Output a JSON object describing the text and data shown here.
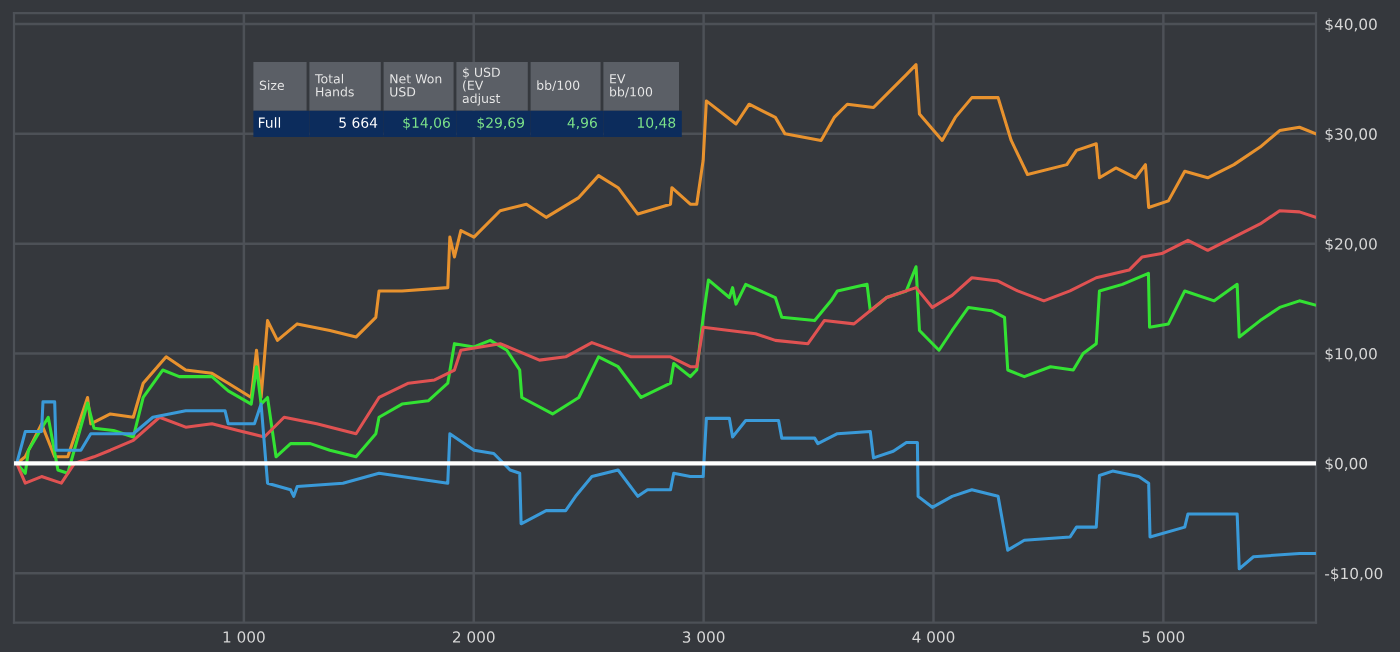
{
  "chart_data": {
    "type": "line",
    "series": [
      {
        "color": "#e8922e",
        "x": [
          12,
          49,
          120,
          177,
          234,
          320,
          334,
          419,
          519,
          562,
          662,
          747,
          861,
          932,
          1032,
          1055,
          1075,
          1103,
          1146,
          1232,
          1374,
          1488,
          1574,
          1588,
          1688,
          1887,
          1896,
          1916,
          1944,
          2001,
          2115,
          2229,
          2315,
          2457,
          2543,
          2628,
          2714,
          2856,
          2862,
          2942,
          2970,
          2998,
          3012,
          3141,
          3198,
          3312,
          3354,
          3511,
          3568,
          3625,
          3739,
          3796,
          3882,
          3924,
          3939,
          4038,
          4095,
          4167,
          4281,
          4338,
          4409,
          4580,
          4622,
          4708,
          4722,
          4794,
          4879,
          4922,
          4936,
          5022,
          5093,
          5193,
          5307,
          5421,
          5506,
          5592,
          5663
        ],
        "values": [
          0,
          0.6,
          3.6,
          0.6,
          0.6,
          6.0,
          3.6,
          4.5,
          4.2,
          7.3,
          9.7,
          8.5,
          8.2,
          7.3,
          6.0,
          10.3,
          6.0,
          13.0,
          11.2,
          12.7,
          12.1,
          11.5,
          13.3,
          15.7,
          15.7,
          16.0,
          20.6,
          18.8,
          21.2,
          20.6,
          23.0,
          23.6,
          22.4,
          24.2,
          26.2,
          25.1,
          22.7,
          23.6,
          25.1,
          23.6,
          23.6,
          27.6,
          33.0,
          30.9,
          32.7,
          31.5,
          30.0,
          29.4,
          31.5,
          32.7,
          32.4,
          33.6,
          35.4,
          36.3,
          31.8,
          29.4,
          31.5,
          33.3,
          33.3,
          29.4,
          26.3,
          27.2,
          28.5,
          29.1,
          26.0,
          26.9,
          26.0,
          27.2,
          23.3,
          23.9,
          26.6,
          26.0,
          27.2,
          28.8,
          30.3,
          30.6,
          30.0
        ]
      },
      {
        "color": "#33e233",
        "x": [
          12,
          49,
          63,
          149,
          191,
          234,
          320,
          348,
          433,
          519,
          562,
          647,
          719,
          861,
          932,
          1032,
          1055,
          1075,
          1103,
          1140,
          1203,
          1289,
          1374,
          1488,
          1574,
          1588,
          1688,
          1802,
          1887,
          1916,
          2001,
          2072,
          2144,
          2200,
          2209,
          2343,
          2457,
          2543,
          2628,
          2728,
          2856,
          2870,
          2942,
          2970,
          2998,
          3021,
          3112,
          3126,
          3141,
          3183,
          3312,
          3340,
          3483,
          3554,
          3582,
          3711,
          3725,
          3796,
          3882,
          3924,
          3939,
          4024,
          4081,
          4152,
          4252,
          4309,
          4323,
          4395,
          4509,
          4608,
          4651,
          4708,
          4722,
          4822,
          4935,
          4940,
          5022,
          5093,
          5221,
          5321,
          5330,
          5421,
          5506,
          5592,
          5663
        ],
        "values": [
          0,
          -0.9,
          1.2,
          4.2,
          -0.6,
          -0.9,
          5.5,
          3.2,
          3.0,
          2.4,
          6.0,
          8.5,
          7.9,
          7.9,
          6.6,
          5.4,
          8.8,
          5.4,
          6.0,
          0.6,
          1.8,
          1.8,
          1.2,
          0.6,
          2.7,
          4.2,
          5.4,
          5.7,
          7.3,
          10.9,
          10.6,
          11.2,
          10.3,
          8.5,
          6.0,
          4.5,
          6.0,
          9.7,
          8.8,
          6.0,
          7.3,
          9.1,
          7.9,
          8.5,
          13.3,
          16.7,
          15.1,
          16.0,
          14.5,
          16.3,
          15.1,
          13.3,
          13.0,
          14.8,
          15.7,
          16.3,
          13.9,
          15.1,
          15.7,
          17.9,
          12.1,
          10.3,
          12.1,
          14.2,
          13.9,
          13.3,
          8.5,
          7.9,
          8.8,
          8.5,
          10.0,
          10.9,
          15.7,
          16.3,
          17.3,
          12.4,
          12.7,
          15.7,
          14.8,
          16.3,
          11.5,
          13.0,
          14.2,
          14.8,
          14.4
        ]
      },
      {
        "color": "#e05252",
        "x": [
          12,
          49,
          120,
          206,
          263,
          348,
          419,
          519,
          633,
          747,
          861,
          975,
          1089,
          1175,
          1317,
          1488,
          1588,
          1716,
          1830,
          1916,
          1944,
          2115,
          2286,
          2400,
          2514,
          2685,
          2856,
          2942,
          2970,
          2998,
          3112,
          3226,
          3312,
          3454,
          3525,
          3654,
          3796,
          3924,
          3995,
          4081,
          4167,
          4281,
          4366,
          4480,
          4594,
          4708,
          4851,
          4908,
          4993,
          5107,
          5193,
          5307,
          5421,
          5506,
          5592,
          5663
        ],
        "values": [
          0,
          -1.8,
          -1.2,
          -1.8,
          0,
          0.6,
          1.2,
          2.1,
          4.2,
          3.3,
          3.6,
          3.0,
          2.4,
          4.2,
          3.6,
          2.7,
          6.0,
          7.3,
          7.6,
          8.5,
          10.3,
          10.9,
          9.4,
          9.7,
          11.0,
          9.7,
          9.7,
          8.8,
          8.8,
          12.4,
          12.1,
          11.8,
          11.2,
          10.9,
          13.0,
          12.7,
          15.1,
          16.0,
          14.2,
          15.3,
          16.9,
          16.6,
          15.7,
          14.8,
          15.7,
          16.9,
          17.6,
          18.8,
          19.1,
          20.3,
          19.4,
          20.6,
          21.8,
          23.0,
          22.9,
          22.4
        ]
      },
      {
        "color": "#3a9ad9",
        "x": [
          12,
          49,
          120,
          126,
          177,
          183,
          291,
          334,
          519,
          604,
          747,
          918,
          932,
          1046,
          1075,
          1103,
          1203,
          1217,
          1232,
          1431,
          1588,
          1887,
          1896,
          2001,
          2087,
          2158,
          2200,
          2206,
          2315,
          2400,
          2443,
          2514,
          2628,
          2714,
          2756,
          2856,
          2870,
          2942,
          2998,
          3012,
          3112,
          3126,
          3183,
          3326,
          3340,
          3483,
          3497,
          3582,
          3725,
          3739,
          3825,
          3882,
          3930,
          3933,
          3995,
          4081,
          4167,
          4281,
          4323,
          4395,
          4594,
          4622,
          4708,
          4722,
          4779,
          4893,
          4936,
          4942,
          5093,
          5107,
          5321,
          5330,
          5392,
          5592,
          5663
        ],
        "values": [
          0,
          2.9,
          2.9,
          5.6,
          5.6,
          1.2,
          1.2,
          2.7,
          2.7,
          4.2,
          4.8,
          4.8,
          3.6,
          3.6,
          5.4,
          -1.8,
          -2.4,
          -3.0,
          -2.1,
          -1.8,
          -0.9,
          -1.8,
          2.7,
          1.2,
          0.9,
          -0.6,
          -0.9,
          -5.5,
          -4.3,
          -4.3,
          -3.0,
          -1.2,
          -0.6,
          -3.0,
          -2.4,
          -2.4,
          -0.9,
          -1.2,
          -1.2,
          4.1,
          4.1,
          2.4,
          3.9,
          3.9,
          2.3,
          2.3,
          1.8,
          2.7,
          2.9,
          0.5,
          1.1,
          1.9,
          1.9,
          -3.0,
          -4.0,
          -3.0,
          -2.4,
          -3.0,
          -7.9,
          -7.0,
          -6.7,
          -5.8,
          -5.8,
          -1.1,
          -0.7,
          -1.2,
          -1.8,
          -6.7,
          -5.8,
          -4.6,
          -4.6,
          -9.6,
          -8.5,
          -8.2,
          -8.2
        ]
      }
    ],
    "xlim": [
      0,
      5664
    ],
    "xticks": [
      {
        "value": 1000,
        "label": "1 000"
      },
      {
        "value": 2000,
        "label": "2 000"
      },
      {
        "value": 3000,
        "label": "3 000"
      },
      {
        "value": 4000,
        "label": "4 000"
      },
      {
        "value": 5000,
        "label": "5 000"
      }
    ],
    "ylim": [
      -14.5,
      41
    ],
    "yticks": [
      {
        "value": -10,
        "label": "-$10,00"
      },
      {
        "value": 0,
        "label": "$0,00"
      },
      {
        "value": 10,
        "label": "$10,00"
      },
      {
        "value": 20,
        "label": "$20,00"
      },
      {
        "value": 30,
        "label": "$30,00"
      },
      {
        "value": 40,
        "label": "$40,00"
      }
    ],
    "grid": true,
    "ref_lines": [
      {
        "axis": "y",
        "value": 0,
        "color": "#ffffff"
      }
    ],
    "annotations": [
      "Size",
      "Total Hands",
      "Net Won USD",
      "$ USD (EV adjust",
      "bb/100",
      "EV bb/100",
      "Full",
      "5 664",
      "$14,06",
      "$29,69",
      "4,96",
      "10,48"
    ]
  }
}
